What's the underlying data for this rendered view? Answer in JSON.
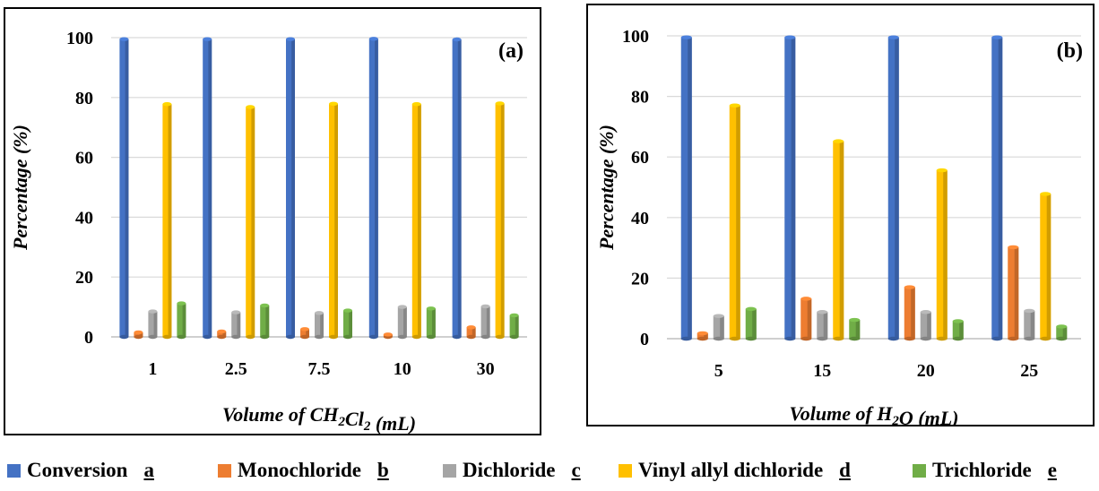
{
  "colors": {
    "conversion": "#4472C4",
    "monochloride": "#ED7D31",
    "dichloride": "#A5A5A5",
    "vinyl_allyl_dichloride": "#FFC000",
    "trichloride": "#70AD47"
  },
  "legend": [
    {
      "name": "Conversion",
      "letter": "a",
      "color": "#4472C4"
    },
    {
      "name": "Monochloride",
      "letter": "b",
      "color": "#ED7D31"
    },
    {
      "name": "Dichloride",
      "letter": "c",
      "color": "#A5A5A5"
    },
    {
      "name": "Vinyl allyl dichloride",
      "letter": "d",
      "color": "#FFC000"
    },
    {
      "name": "Trichloride",
      "letter": "e",
      "color": "#70AD47"
    }
  ],
  "chart_data": [
    {
      "type": "bar",
      "panel_label": "(a)",
      "ylabel": "Percentage (%)",
      "xlabel_parts": [
        "Volume of CH",
        "2",
        "Cl",
        "2",
        " (mL)"
      ],
      "ylim": [
        0,
        100
      ],
      "yticks": [
        "0",
        "20",
        "40",
        "60",
        "80",
        "100"
      ],
      "grid": true,
      "categories": [
        "1",
        "2.5",
        "7.5",
        "10",
        "30"
      ],
      "series": [
        {
          "name": "Conversion",
          "values": [
            99.5,
            99.5,
            99.5,
            99.6,
            99.4
          ]
        },
        {
          "name": "Monochloride",
          "values": [
            1.5,
            1.8,
            2.6,
            0.8,
            3.2
          ]
        },
        {
          "name": "Dichloride",
          "values": [
            8.5,
            8.2,
            8.0,
            10.0,
            10.2
          ]
        },
        {
          "name": "Vinyl allyl dichloride",
          "values": [
            77.8,
            76.8,
            77.9,
            77.8,
            78.0
          ]
        },
        {
          "name": "Trichloride",
          "values": [
            11.2,
            10.5,
            8.8,
            9.5,
            7.2
          ]
        }
      ]
    },
    {
      "type": "bar",
      "panel_label": "(b)",
      "ylabel": "Percentage (%)",
      "xlabel_parts": [
        "Volume of H",
        "2",
        "O (mL)"
      ],
      "ylim": [
        0,
        100
      ],
      "yticks": [
        "0",
        "20",
        "40",
        "60",
        "80",
        "100"
      ],
      "grid": true,
      "categories": [
        "5",
        "15",
        "20",
        "25"
      ],
      "series": [
        {
          "name": "Conversion",
          "values": [
            99.5,
            99.5,
            99.5,
            99.5
          ]
        },
        {
          "name": "Monochloride",
          "values": [
            1.8,
            13.2,
            17.0,
            30.2
          ]
        },
        {
          "name": "Dichloride",
          "values": [
            7.5,
            8.8,
            8.8,
            9.2
          ]
        },
        {
          "name": "Vinyl allyl dichloride",
          "values": [
            77.0,
            65.2,
            55.6,
            47.8
          ]
        },
        {
          "name": "Trichloride",
          "values": [
            9.8,
            6.2,
            5.8,
            4.0
          ]
        }
      ]
    }
  ]
}
